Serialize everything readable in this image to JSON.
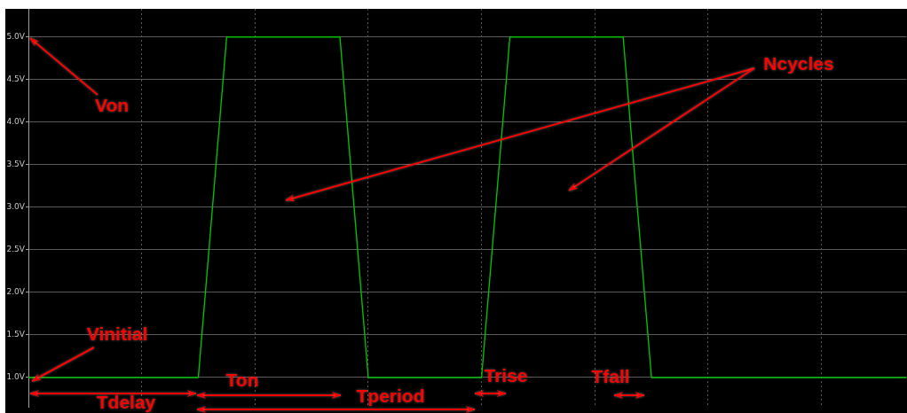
{
  "chart_data": {
    "type": "line",
    "categories": [
      null,
      null,
      null,
      null,
      null,
      null,
      null,
      null,
      null,
      null,
      null,
      null,
      null,
      null,
      null,
      null,
      null,
      null,
      null,
      null,
      null,
      null,
      null,
      null,
      null,
      null,
      null,
      null,
      null,
      null,
      null,
      null
    ],
    "series": [
      {
        "color": "#00c000",
        "values": [
          1.0,
          1.0,
          1.0,
          1.0,
          1.0,
          1.0,
          1.0,
          5.0,
          5.0,
          5.0,
          5.0,
          5.0,
          1.0,
          1.0,
          1.0,
          1.0,
          1.0,
          5.0,
          5.0,
          5.0,
          5.0,
          5.0,
          1.0,
          1.0,
          1.0,
          1.0,
          1.0,
          1.0,
          1.0,
          1.0,
          1.0,
          1.0
        ]
      }
    ],
    "ylim": [
      0.65,
      5.33
    ],
    "yticks": [
      {
        "value": 1.0,
        "label": "1.0V"
      },
      {
        "value": 1.5,
        "label": "1.5V"
      },
      {
        "value": 2.0,
        "label": "2.0V"
      },
      {
        "value": 2.5,
        "label": "2.5V"
      },
      {
        "value": 3.0,
        "label": "3.0V"
      },
      {
        "value": 3.5,
        "label": "3.5V"
      },
      {
        "value": 4.0,
        "label": "4.0V"
      },
      {
        "value": 4.5,
        "label": "4.5V"
      },
      {
        "value": 5.0,
        "label": "5.0V"
      }
    ],
    "tick_labels": "y",
    "grid": true,
    "legend": false,
    "marker": "none",
    "annotations": [
      "Von",
      "Vinitial",
      "Ncycles",
      "Tdelay",
      "Ton",
      "Tperiod",
      "Trise",
      "Tfall"
    ]
  }
}
